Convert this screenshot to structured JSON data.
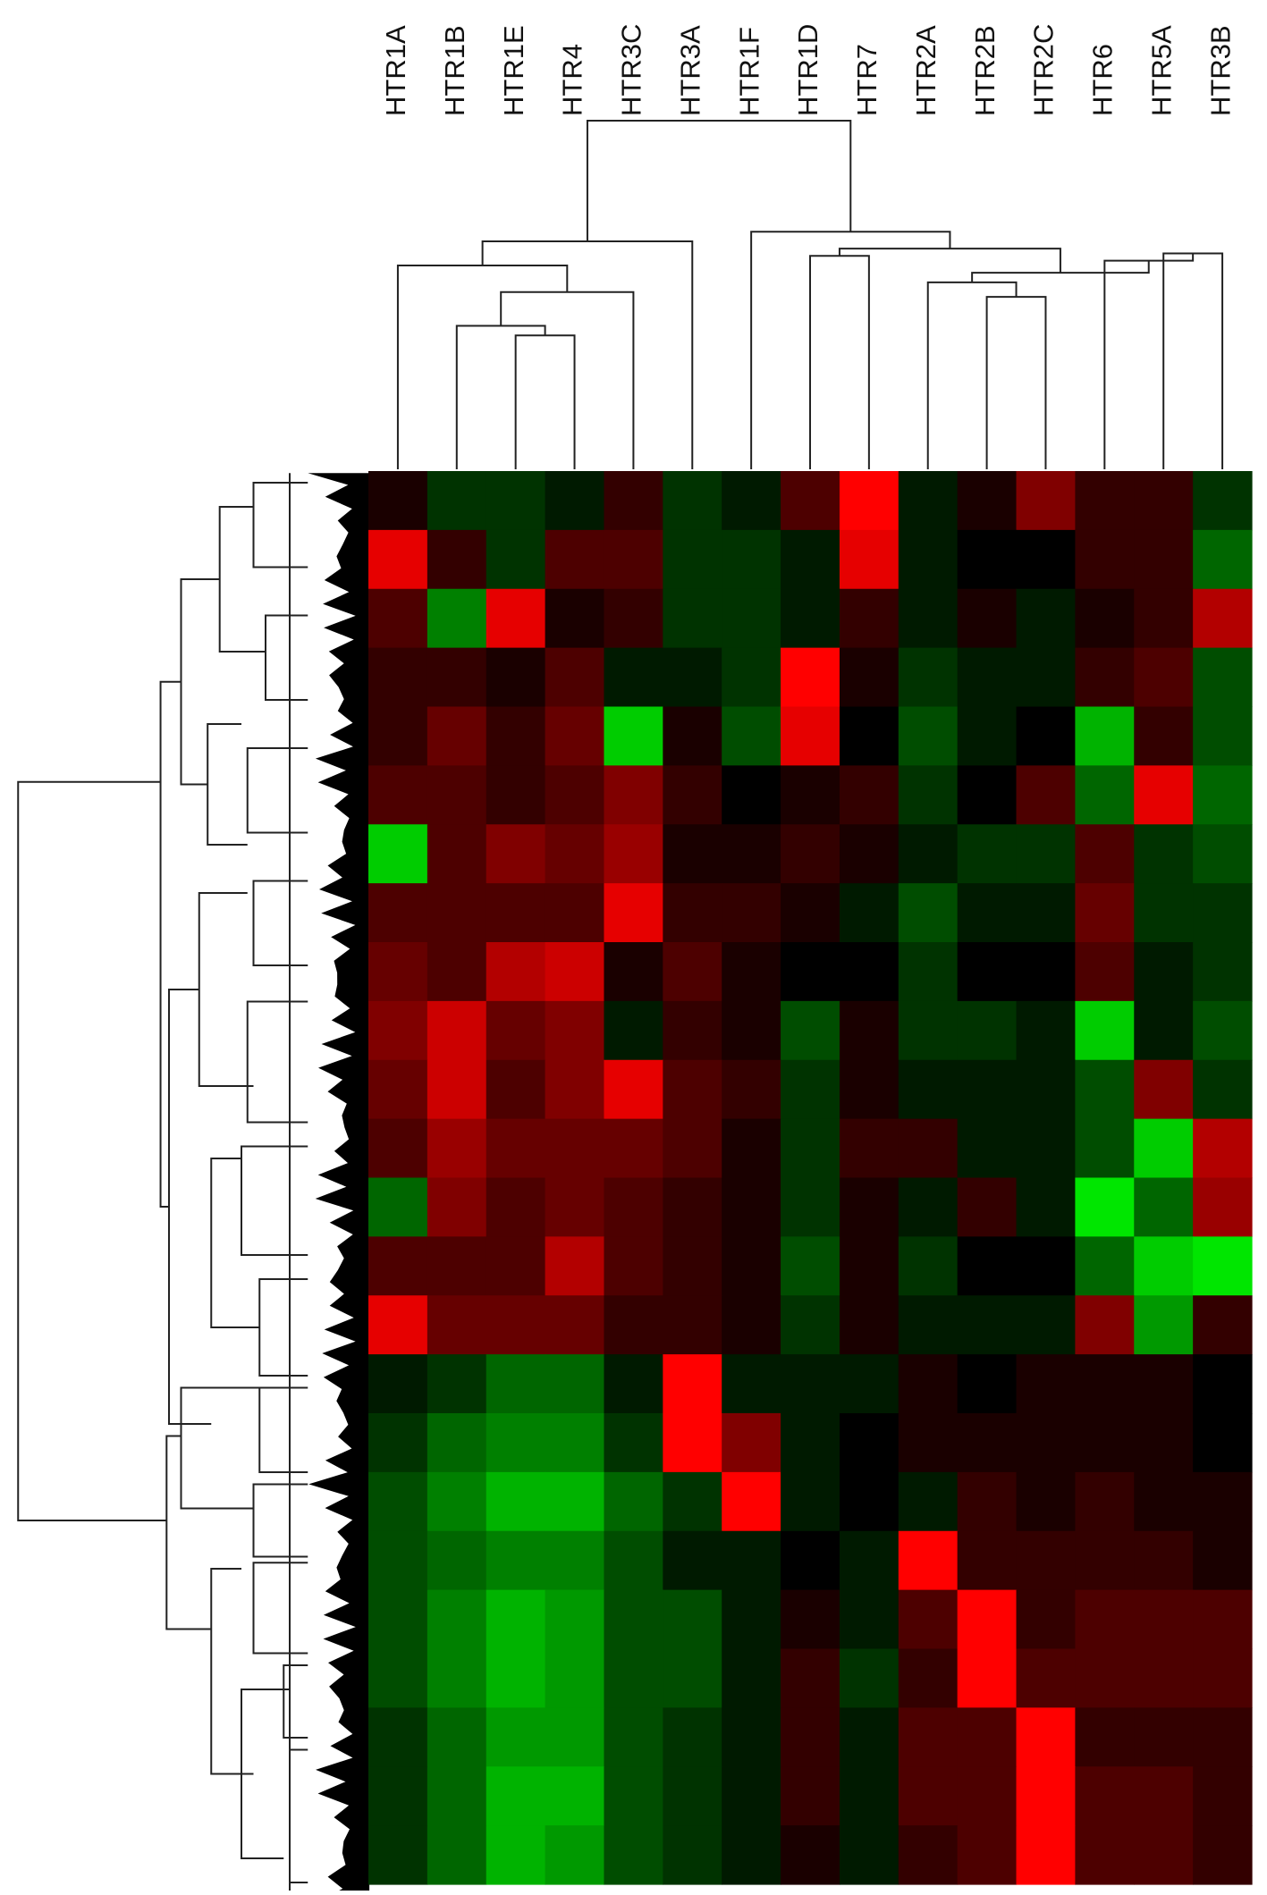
{
  "chart_data": {
    "type": "heatmap",
    "categories": [
      "HTR1A",
      "HTR1B",
      "HTR1E",
      "HTR4",
      "HTR3C",
      "HTR3A",
      "HTR1F",
      "HTR1D",
      "HTR7",
      "HTR2A",
      "HTR2B",
      "HTR2C",
      "HTR6",
      "HTR5A",
      "HTR3B"
    ],
    "zlim": [
      -1,
      1
    ],
    "low_color": "#00ff00",
    "mid_color": "#000000",
    "high_color": "#ff0000",
    "z": [
      [
        0.1,
        -0.2,
        -0.2,
        -0.1,
        0.2,
        -0.2,
        -0.1,
        0.3,
        1,
        -0.1,
        0.1,
        0.5,
        0.2,
        0.2,
        -0.2
      ],
      [
        0.9,
        0.2,
        -0.2,
        0.3,
        0.3,
        -0.2,
        -0.2,
        -0.1,
        0.9,
        -0.1,
        0,
        0,
        0.2,
        0.2,
        -0.4
      ],
      [
        0.3,
        -0.5,
        0.9,
        0.1,
        0.2,
        -0.2,
        -0.2,
        -0.1,
        0.2,
        -0.1,
        0.1,
        -0.1,
        0.1,
        0.2,
        0.7
      ],
      [
        0.2,
        0.2,
        0.1,
        0.3,
        -0.1,
        -0.1,
        -0.2,
        1,
        0.1,
        -0.2,
        -0.1,
        -0.1,
        0.2,
        0.3,
        -0.3
      ],
      [
        0.2,
        0.4,
        0.2,
        0.4,
        -0.8,
        0.1,
        -0.3,
        0.9,
        0,
        -0.3,
        -0.1,
        0,
        -0.7,
        0.2,
        -0.3
      ],
      [
        0.3,
        0.3,
        0.2,
        0.3,
        0.5,
        0.2,
        0,
        0.1,
        0.2,
        -0.2,
        0,
        0.3,
        -0.4,
        0.9,
        -0.4
      ],
      [
        -0.8,
        0.3,
        0.5,
        0.4,
        0.6,
        0.1,
        0.1,
        0.2,
        0.1,
        -0.1,
        -0.2,
        -0.2,
        0.3,
        -0.2,
        -0.3
      ],
      [
        0.3,
        0.3,
        0.3,
        0.3,
        0.9,
        0.2,
        0.2,
        0.1,
        -0.1,
        -0.3,
        -0.1,
        -0.1,
        0.4,
        -0.2,
        -0.2
      ],
      [
        0.4,
        0.3,
        0.7,
        0.8,
        0.1,
        0.3,
        0.1,
        0,
        0,
        -0.2,
        0,
        0,
        0.3,
        -0.1,
        -0.2
      ],
      [
        0.5,
        0.8,
        0.4,
        0.5,
        -0.1,
        0.2,
        0.1,
        -0.3,
        0.1,
        -0.2,
        -0.2,
        -0.1,
        -0.8,
        -0.1,
        -0.3
      ],
      [
        0.4,
        0.8,
        0.3,
        0.5,
        0.9,
        0.3,
        0.2,
        -0.2,
        0.1,
        -0.1,
        -0.1,
        -0.1,
        -0.3,
        0.5,
        -0.2
      ],
      [
        0.3,
        0.6,
        0.4,
        0.4,
        0.4,
        0.3,
        0.1,
        -0.2,
        0.2,
        0.2,
        -0.1,
        -0.1,
        -0.3,
        -0.8,
        0.7
      ],
      [
        -0.4,
        0.5,
        0.3,
        0.4,
        0.3,
        0.2,
        0.1,
        -0.2,
        0.1,
        -0.1,
        0.2,
        -0.1,
        -0.9,
        -0.4,
        0.6
      ],
      [
        0.3,
        0.3,
        0.3,
        0.7,
        0.3,
        0.2,
        0.1,
        -0.3,
        0.1,
        -0.2,
        0,
        0,
        -0.4,
        -0.8,
        -0.9
      ],
      [
        0.9,
        0.4,
        0.4,
        0.4,
        0.2,
        0.2,
        0.1,
        -0.2,
        0.1,
        -0.1,
        -0.1,
        -0.1,
        0.5,
        -0.6,
        0.2
      ],
      [
        -0.1,
        -0.2,
        -0.4,
        -0.4,
        -0.1,
        1,
        -0.1,
        -0.1,
        -0.1,
        0.1,
        0,
        0.1,
        0.1,
        0.1,
        0
      ],
      [
        -0.2,
        -0.4,
        -0.5,
        -0.5,
        -0.2,
        1,
        0.5,
        -0.1,
        0,
        0.1,
        0.1,
        0.1,
        0.1,
        0.1,
        0
      ],
      [
        -0.3,
        -0.5,
        -0.7,
        -0.7,
        -0.4,
        -0.2,
        1,
        -0.1,
        0,
        -0.1,
        0.2,
        0.1,
        0.2,
        0.1,
        0.1
      ],
      [
        -0.3,
        -0.4,
        -0.5,
        -0.5,
        -0.3,
        -0.1,
        -0.1,
        0,
        -0.1,
        1,
        0.2,
        0.2,
        0.2,
        0.2,
        0.1
      ],
      [
        -0.3,
        -0.5,
        -0.7,
        -0.6,
        -0.3,
        -0.3,
        -0.1,
        0.1,
        -0.1,
        0.3,
        1,
        0.2,
        0.3,
        0.3,
        0.3
      ],
      [
        -0.3,
        -0.5,
        -0.7,
        -0.6,
        -0.3,
        -0.3,
        -0.1,
        0.2,
        -0.2,
        0.2,
        1,
        0.3,
        0.3,
        0.3,
        0.3
      ],
      [
        -0.2,
        -0.4,
        -0.6,
        -0.6,
        -0.3,
        -0.2,
        -0.1,
        0.2,
        -0.1,
        0.3,
        0.3,
        1,
        0.2,
        0.2,
        0.2
      ],
      [
        -0.2,
        -0.4,
        -0.7,
        -0.7,
        -0.3,
        -0.2,
        -0.1,
        0.2,
        -0.1,
        0.3,
        0.3,
        1,
        0.3,
        0.3,
        0.2
      ],
      [
        -0.2,
        -0.4,
        -0.7,
        -0.6,
        -0.3,
        -0.2,
        -0.1,
        0.1,
        -0.1,
        0.2,
        0.3,
        1,
        0.3,
        0.3,
        0.2
      ]
    ]
  }
}
